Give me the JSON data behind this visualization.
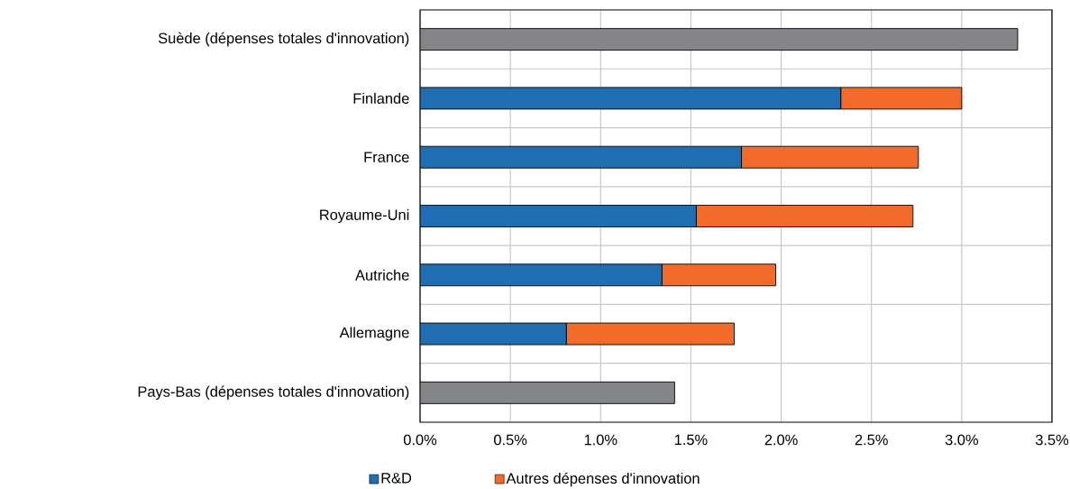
{
  "chart_data": {
    "type": "bar",
    "orientation": "horizontal",
    "stacked": true,
    "categories": [
      "Suède (dépenses totales d'innovation)",
      "Finlande",
      "France",
      "Royaume-Uni",
      "Autriche",
      "Allemagne",
      "Pays-Bas (dépenses totales d'innovation)"
    ],
    "series": [
      {
        "name": "R&D",
        "color": "#1f6eb4",
        "values": [
          null,
          2.33,
          1.78,
          1.53,
          1.34,
          0.81,
          null
        ]
      },
      {
        "name": "Autres dépenses d'innovation",
        "color": "#f26b2a",
        "values": [
          null,
          0.67,
          0.98,
          1.2,
          0.63,
          0.93,
          null
        ]
      },
      {
        "color": "#848589",
        "values": [
          3.31,
          null,
          null,
          null,
          null,
          null,
          1.41
        ]
      }
    ],
    "xlim": [
      0,
      3.5
    ],
    "xticks": [
      {
        "value": 0,
        "label": "0.0%"
      },
      {
        "value": 0.5,
        "label": "0.5%"
      },
      {
        "value": 1,
        "label": "1.0%"
      },
      {
        "value": 1.5,
        "label": "1.5%"
      },
      {
        "value": 2,
        "label": "2.0%"
      },
      {
        "value": 2.5,
        "label": "2.5%"
      },
      {
        "value": 3,
        "label": "3.0%"
      },
      {
        "value": 3.5,
        "label": "3.5%"
      }
    ],
    "grid": true,
    "legend": "bottom"
  }
}
